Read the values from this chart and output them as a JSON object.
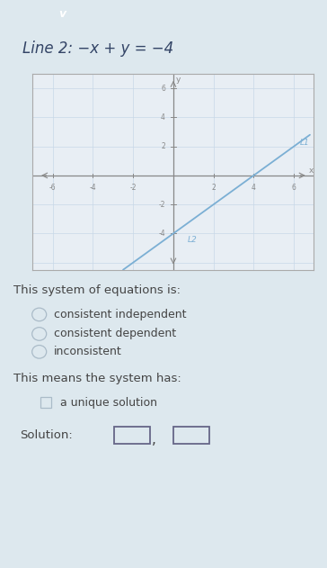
{
  "line_color": "#7bafd4",
  "axis_color": "#888888",
  "grid_color": "#c8d8e8",
  "outer_bg": "#dde8ee",
  "plot_bg": "#e8eef4",
  "plot_border": "#aaaaaa",
  "xlim": [
    -7,
    7
  ],
  "ylim": [
    -6.5,
    7
  ],
  "text_color": "#444444",
  "title_text": "Line 2: −x + y = −4",
  "section_title": "This system of equations is:",
  "options": [
    "consistent independent",
    "consistent dependent",
    "inconsistent"
  ],
  "section2_title": "This means the system has:",
  "option2": "a unique solution",
  "solution_label": "Solution:",
  "header_bg": "#3bbcd4",
  "chevron": "∨",
  "font_size_body": 9.5,
  "font_size_option": 9
}
